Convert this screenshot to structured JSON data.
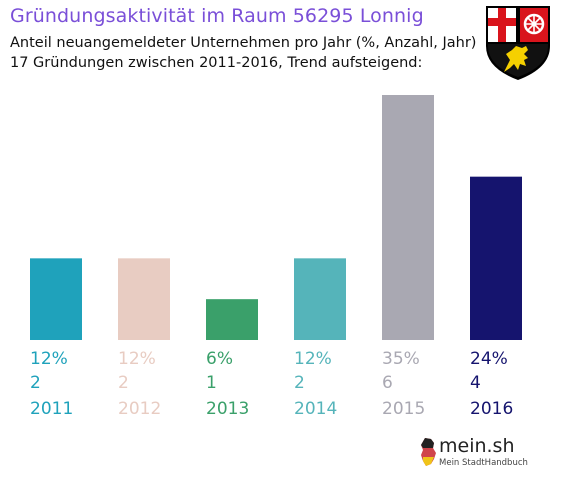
{
  "title": "Gründungsaktivität im Raum 56295 Lonnig",
  "subtitle_line1": "Anteil neuangemeldeter Unternehmen pro Jahr (%, Anzahl, Jahr)",
  "subtitle_line2": "17 Gründungen zwischen 2011-2016, Trend aufsteigend:",
  "logo": {
    "name": "mein.sh",
    "tagline": "Mein StadtHandbuch"
  },
  "colors": {
    "title": "#7a4fd8",
    "bars": [
      "#1fa2bb",
      "#e8ccc2",
      "#3aa06a",
      "#55b4ba",
      "#a9a8b2",
      "#15146e"
    ]
  },
  "chart_data": {
    "type": "bar",
    "categories": [
      "2011",
      "2012",
      "2013",
      "2014",
      "2015",
      "2016"
    ],
    "values": [
      2,
      2,
      1,
      2,
      6,
      4
    ],
    "percent_labels": [
      "12%",
      "12%",
      "6%",
      "12%",
      "35%",
      "24%"
    ],
    "count_labels": [
      "2",
      "2",
      "1",
      "2",
      "6",
      "4"
    ],
    "ylim": [
      0,
      6
    ],
    "grid": false,
    "legend": "none"
  }
}
